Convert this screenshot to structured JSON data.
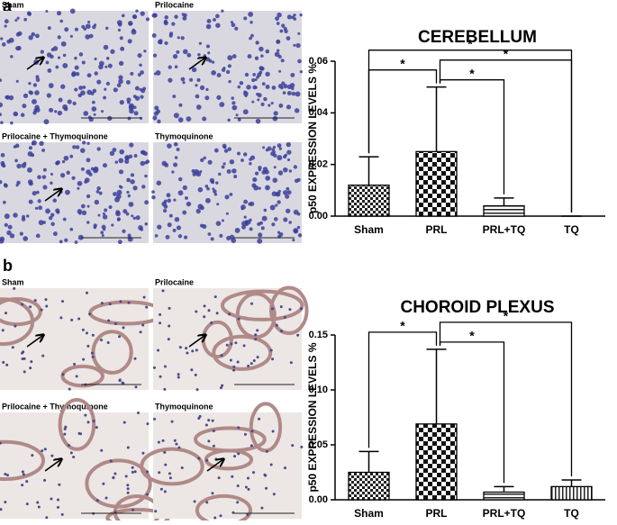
{
  "figure": {
    "panels": [
      {
        "label": "a",
        "images": [
          "Sham",
          "Prilocaine",
          "Prilocaine + Thymoquinone",
          "Thymoquinone"
        ]
      },
      {
        "label": "b",
        "images": [
          "Sham",
          "Prilocaine",
          "Prilocaine + Thymoquinone",
          "Thymoquinone"
        ]
      }
    ]
  },
  "chart_data": [
    {
      "type": "bar",
      "title": "CEREBELLUM",
      "ylabel": "p50 EXPRESSION LEVELS %",
      "categories": [
        "Sham",
        "PRL",
        "PRL+TQ",
        "TQ"
      ],
      "values": [
        0.012,
        0.025,
        0.004,
        0
      ],
      "errors": [
        0.011,
        0.025,
        0.003,
        0
      ],
      "patterns": [
        "checker-small",
        "checker-large",
        "horizontal",
        "vertical"
      ],
      "ylim": [
        0,
        0.06
      ],
      "yticks": [
        {
          "value": 0,
          "label": "0.00"
        },
        {
          "value": 0.02,
          "label": "0.02"
        },
        {
          "value": 0.04,
          "label": "0.04"
        },
        {
          "value": 0.06,
          "label": "0.06"
        }
      ],
      "significance": [
        {
          "from": 1,
          "to": 2,
          "label": "*"
        },
        {
          "from": 0,
          "to": 1,
          "label": "*"
        },
        {
          "from": 1,
          "to": 3,
          "label": "*"
        },
        {
          "from": 0,
          "to": 3,
          "label": "*"
        }
      ]
    },
    {
      "type": "bar",
      "title": "CHOROID PLEXUS",
      "ylabel": "p50 EXPRESSION LEVELS %",
      "categories": [
        "Sham",
        "PRL",
        "PRL+TQ",
        "TQ"
      ],
      "values": [
        0.025,
        0.069,
        0.007,
        0.012
      ],
      "errors": [
        0.019,
        0.068,
        0.005,
        0.006
      ],
      "patterns": [
        "checker-small",
        "checker-large",
        "horizontal",
        "vertical"
      ],
      "ylim": [
        0,
        0.15
      ],
      "yticks": [
        {
          "value": 0,
          "label": "0.00"
        },
        {
          "value": 0.05,
          "label": "0.05"
        },
        {
          "value": 0.1,
          "label": "0.10"
        },
        {
          "value": 0.15,
          "label": "0.15"
        }
      ],
      "significance": [
        {
          "from": 1,
          "to": 2,
          "label": "*"
        },
        {
          "from": 0,
          "to": 1,
          "label": "*"
        },
        {
          "from": 1,
          "to": 3,
          "label": "*"
        }
      ]
    }
  ]
}
